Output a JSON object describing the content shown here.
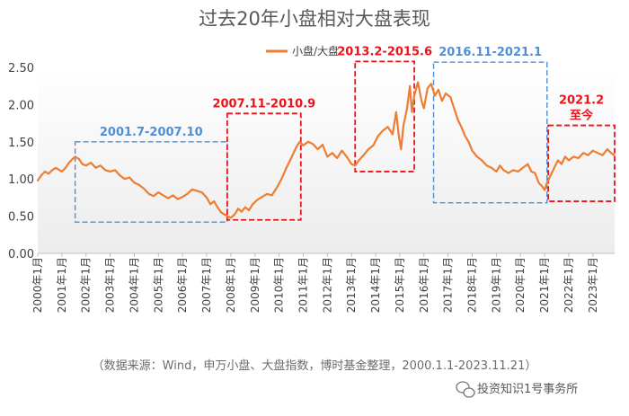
{
  "colors": {
    "series": "#ed7d31",
    "red_box": "#e8141b",
    "blue_box": "#4f8fd8",
    "axis": "#bfbfbf",
    "plot_bg_start": "#ffffff",
    "plot_bg_end": "#ececec"
  },
  "chart_data": {
    "type": "line",
    "title": "过去20年小盘相对大盘表现",
    "legend": [
      {
        "name": "小盘/大盘",
        "color": "#ed7d31"
      }
    ],
    "legend_position": "top-center",
    "xlabel": "",
    "ylabel": "",
    "ylim": [
      0,
      2.5
    ],
    "yticks": [
      "0.00",
      "0.50",
      "1.00",
      "1.50",
      "2.00",
      "2.50"
    ],
    "xlim": [
      2000.0,
      2023.9
    ],
    "xticks": [
      {
        "value": 2000,
        "label": "2000年1月"
      },
      {
        "value": 2001,
        "label": "2001年1月"
      },
      {
        "value": 2002,
        "label": "2002年1月"
      },
      {
        "value": 2003,
        "label": "2003年1月"
      },
      {
        "value": 2004,
        "label": "2004年1月"
      },
      {
        "value": 2005,
        "label": "2005年1月"
      },
      {
        "value": 2006,
        "label": "2006年1月"
      },
      {
        "value": 2007,
        "label": "2007年1月"
      },
      {
        "value": 2008,
        "label": "2008年1月"
      },
      {
        "value": 2009,
        "label": "2009年1月"
      },
      {
        "value": 2010,
        "label": "2010年1月"
      },
      {
        "value": 2011,
        "label": "2011年1月"
      },
      {
        "value": 2012,
        "label": "2012年1月"
      },
      {
        "value": 2013,
        "label": "2013年1月"
      },
      {
        "value": 2014,
        "label": "2014年1月"
      },
      {
        "value": 2015,
        "label": "2015年1月"
      },
      {
        "value": 2016,
        "label": "2016年1月"
      },
      {
        "value": 2017,
        "label": "2017年1月"
      },
      {
        "value": 2018,
        "label": "2018年1月"
      },
      {
        "value": 2019,
        "label": "2019年1月"
      },
      {
        "value": 2020,
        "label": "2020年1月"
      },
      {
        "value": 2021,
        "label": "2021年1月"
      },
      {
        "value": 2022,
        "label": "2022年1月"
      },
      {
        "value": 2023,
        "label": "2023年1月"
      }
    ],
    "series": [
      {
        "name": "小盘/大盘",
        "points": [
          [
            2000.0,
            0.98
          ],
          [
            2000.15,
            1.05
          ],
          [
            2000.3,
            1.1
          ],
          [
            2000.45,
            1.07
          ],
          [
            2000.6,
            1.12
          ],
          [
            2000.75,
            1.15
          ],
          [
            2000.9,
            1.12
          ],
          [
            2001.0,
            1.1
          ],
          [
            2001.15,
            1.15
          ],
          [
            2001.3,
            1.22
          ],
          [
            2001.45,
            1.27
          ],
          [
            2001.55,
            1.3
          ],
          [
            2001.7,
            1.27
          ],
          [
            2001.85,
            1.2
          ],
          [
            2002.0,
            1.18
          ],
          [
            2002.2,
            1.22
          ],
          [
            2002.4,
            1.15
          ],
          [
            2002.6,
            1.18
          ],
          [
            2002.8,
            1.12
          ],
          [
            2003.0,
            1.1
          ],
          [
            2003.2,
            1.12
          ],
          [
            2003.4,
            1.05
          ],
          [
            2003.6,
            1.0
          ],
          [
            2003.8,
            1.02
          ],
          [
            2004.0,
            0.95
          ],
          [
            2004.2,
            0.92
          ],
          [
            2004.4,
            0.87
          ],
          [
            2004.6,
            0.8
          ],
          [
            2004.8,
            0.77
          ],
          [
            2005.0,
            0.82
          ],
          [
            2005.2,
            0.78
          ],
          [
            2005.4,
            0.74
          ],
          [
            2005.6,
            0.78
          ],
          [
            2005.8,
            0.73
          ],
          [
            2006.0,
            0.76
          ],
          [
            2006.2,
            0.8
          ],
          [
            2006.4,
            0.86
          ],
          [
            2006.6,
            0.84
          ],
          [
            2006.8,
            0.82
          ],
          [
            2007.0,
            0.75
          ],
          [
            2007.15,
            0.66
          ],
          [
            2007.3,
            0.7
          ],
          [
            2007.45,
            0.62
          ],
          [
            2007.6,
            0.55
          ],
          [
            2007.75,
            0.52
          ],
          [
            2007.85,
            0.5
          ],
          [
            2008.0,
            0.48
          ],
          [
            2008.15,
            0.52
          ],
          [
            2008.3,
            0.6
          ],
          [
            2008.45,
            0.56
          ],
          [
            2008.6,
            0.62
          ],
          [
            2008.75,
            0.58
          ],
          [
            2008.9,
            0.66
          ],
          [
            2009.1,
            0.72
          ],
          [
            2009.3,
            0.76
          ],
          [
            2009.5,
            0.8
          ],
          [
            2009.7,
            0.78
          ],
          [
            2009.9,
            0.88
          ],
          [
            2010.1,
            1.0
          ],
          [
            2010.3,
            1.15
          ],
          [
            2010.5,
            1.28
          ],
          [
            2010.7,
            1.42
          ],
          [
            2010.85,
            1.5
          ],
          [
            2011.0,
            1.45
          ],
          [
            2011.2,
            1.5
          ],
          [
            2011.4,
            1.47
          ],
          [
            2011.6,
            1.4
          ],
          [
            2011.8,
            1.46
          ],
          [
            2012.0,
            1.3
          ],
          [
            2012.2,
            1.35
          ],
          [
            2012.4,
            1.28
          ],
          [
            2012.6,
            1.38
          ],
          [
            2012.8,
            1.3
          ],
          [
            2013.0,
            1.2
          ],
          [
            2013.15,
            1.18
          ],
          [
            2013.3,
            1.25
          ],
          [
            2013.5,
            1.32
          ],
          [
            2013.7,
            1.4
          ],
          [
            2013.9,
            1.45
          ],
          [
            2014.1,
            1.58
          ],
          [
            2014.3,
            1.65
          ],
          [
            2014.5,
            1.7
          ],
          [
            2014.7,
            1.6
          ],
          [
            2014.85,
            1.9
          ],
          [
            2014.95,
            1.6
          ],
          [
            2015.05,
            1.4
          ],
          [
            2015.15,
            1.72
          ],
          [
            2015.3,
            1.95
          ],
          [
            2015.42,
            2.25
          ],
          [
            2015.5,
            1.9
          ],
          [
            2015.6,
            2.12
          ],
          [
            2015.75,
            2.3
          ],
          [
            2015.9,
            2.05
          ],
          [
            2016.0,
            1.95
          ],
          [
            2016.15,
            2.22
          ],
          [
            2016.3,
            2.28
          ],
          [
            2016.45,
            2.12
          ],
          [
            2016.6,
            2.2
          ],
          [
            2016.75,
            2.05
          ],
          [
            2016.9,
            2.15
          ],
          [
            2017.1,
            2.1
          ],
          [
            2017.25,
            1.95
          ],
          [
            2017.4,
            1.8
          ],
          [
            2017.55,
            1.7
          ],
          [
            2017.7,
            1.58
          ],
          [
            2017.85,
            1.5
          ],
          [
            2018.0,
            1.38
          ],
          [
            2018.2,
            1.3
          ],
          [
            2018.4,
            1.25
          ],
          [
            2018.6,
            1.18
          ],
          [
            2018.8,
            1.15
          ],
          [
            2019.0,
            1.1
          ],
          [
            2019.15,
            1.18
          ],
          [
            2019.3,
            1.12
          ],
          [
            2019.5,
            1.08
          ],
          [
            2019.7,
            1.12
          ],
          [
            2019.9,
            1.1
          ],
          [
            2020.1,
            1.15
          ],
          [
            2020.3,
            1.2
          ],
          [
            2020.45,
            1.1
          ],
          [
            2020.6,
            1.08
          ],
          [
            2020.75,
            0.95
          ],
          [
            2020.9,
            0.9
          ],
          [
            2021.0,
            0.85
          ],
          [
            2021.1,
            0.95
          ],
          [
            2021.25,
            1.05
          ],
          [
            2021.4,
            1.15
          ],
          [
            2021.55,
            1.25
          ],
          [
            2021.7,
            1.2
          ],
          [
            2021.85,
            1.3
          ],
          [
            2022.0,
            1.25
          ],
          [
            2022.2,
            1.3
          ],
          [
            2022.4,
            1.28
          ],
          [
            2022.6,
            1.35
          ],
          [
            2022.8,
            1.32
          ],
          [
            2023.0,
            1.38
          ],
          [
            2023.2,
            1.35
          ],
          [
            2023.4,
            1.32
          ],
          [
            2023.6,
            1.4
          ],
          [
            2023.75,
            1.35
          ],
          [
            2023.88,
            1.32
          ]
        ]
      }
    ],
    "annotations": [
      {
        "label": "2001.7-2007.10",
        "style": "blue",
        "x_range": [
          2001.55,
          2007.85
        ],
        "y_range": [
          0.42,
          1.5
        ]
      },
      {
        "label": "2007.11-2010.9",
        "style": "red",
        "x_range": [
          2007.85,
          2010.9
        ],
        "y_range": [
          0.45,
          1.88
        ]
      },
      {
        "label": "2013.2-2015.6",
        "style": "red",
        "x_range": [
          2013.15,
          2015.6
        ],
        "y_range": [
          1.1,
          2.58
        ]
      },
      {
        "label": "2016.11-2021.1",
        "style": "blue",
        "x_range": [
          2016.4,
          2021.1
        ],
        "y_range": [
          0.68,
          2.57
        ]
      },
      {
        "label": "2021.2",
        "label2": "至今",
        "style": "red",
        "x_range": [
          2021.15,
          2023.9
        ],
        "y_range": [
          0.7,
          1.72
        ]
      }
    ]
  },
  "footer": {
    "source": "（数据来源：Wind，申万小盘、大盘指数，博时基金整理，2000.1.1-2023.11.21）",
    "watermark": "投资知识1号事务所"
  }
}
